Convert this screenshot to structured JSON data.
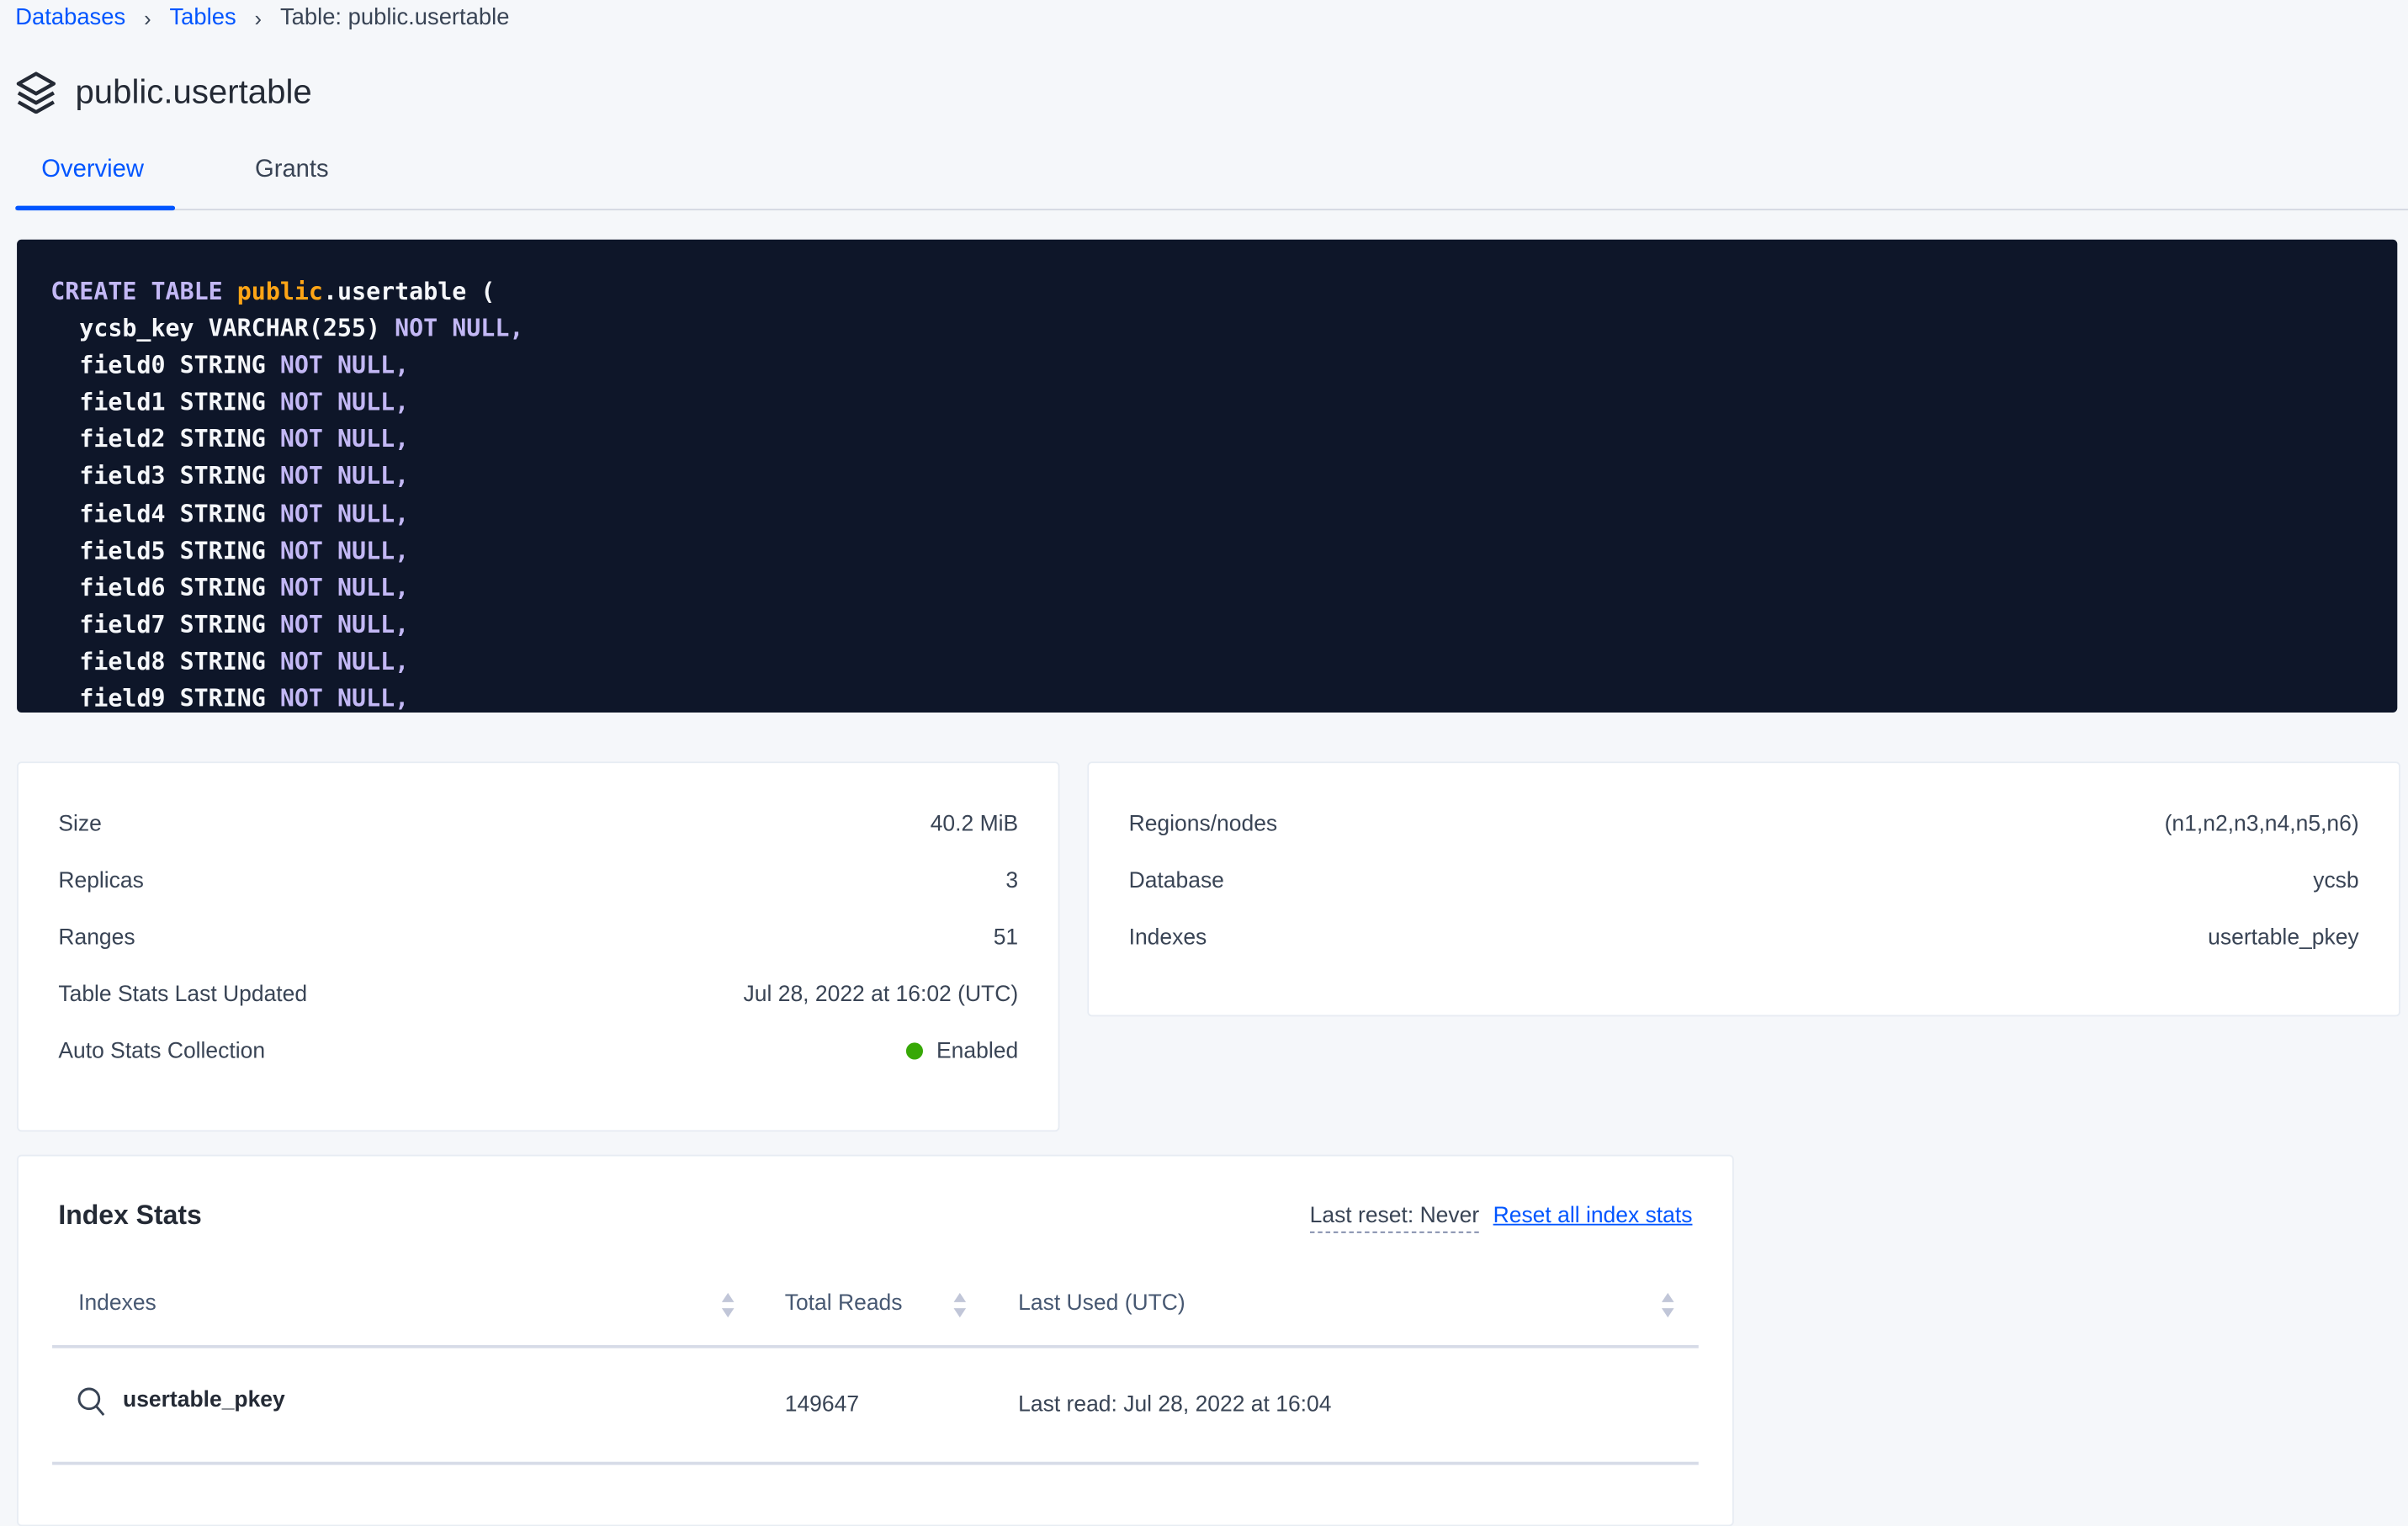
{
  "breadcrumb": [
    "Databases",
    "Tables",
    "Table: public.usertable"
  ],
  "page_title": "public.usertable",
  "tabs": [
    {
      "label": "Overview",
      "active": true
    },
    {
      "label": "Grants",
      "active": false
    }
  ],
  "colors": {
    "accent": "#0055ff",
    "code_bg": "#0e1629",
    "keyword": "#c3b8f5",
    "schema": "#ffa516",
    "enabled": "#37a806"
  },
  "create_statement": {
    "head": [
      "CREATE",
      "TABLE",
      "public",
      ".usertable ("
    ],
    "first_col": "  ycsb_key VARCHAR(255)",
    "fields": [
      "field0",
      "field1",
      "field2",
      "field3",
      "field4",
      "field5",
      "field6",
      "field7",
      "field8",
      "field9"
    ],
    "type": "STRING",
    "not": "NOT",
    "null": "NULL,"
  },
  "table_stats": [
    {
      "label": "Size",
      "value": "40.2 MiB"
    },
    {
      "label": "Replicas",
      "value": "3"
    },
    {
      "label": "Ranges",
      "value": "51"
    },
    {
      "label": "Table Stats Last Updated",
      "value": "Jul 28, 2022 at 16:02 (UTC)"
    },
    {
      "label": "Auto Stats Collection",
      "value": "Enabled"
    }
  ],
  "table_info": [
    {
      "label": "Regions/nodes",
      "value": "(n1,n2,n3,n4,n5,n6)"
    },
    {
      "label": "Database",
      "value": "ycsb"
    },
    {
      "label": "Indexes",
      "value": "usertable_pkey"
    }
  ],
  "index_stats": {
    "title": "Index Stats",
    "last_reset": "Last reset: Never",
    "reset_link": "Reset all index stats",
    "columns": [
      "Indexes",
      "Total Reads",
      "Last Used (UTC)"
    ],
    "rows": [
      {
        "index": "usertable_pkey",
        "total_reads": "149647",
        "last_used": "Last read: Jul 28, 2022 at 16:04"
      }
    ]
  }
}
